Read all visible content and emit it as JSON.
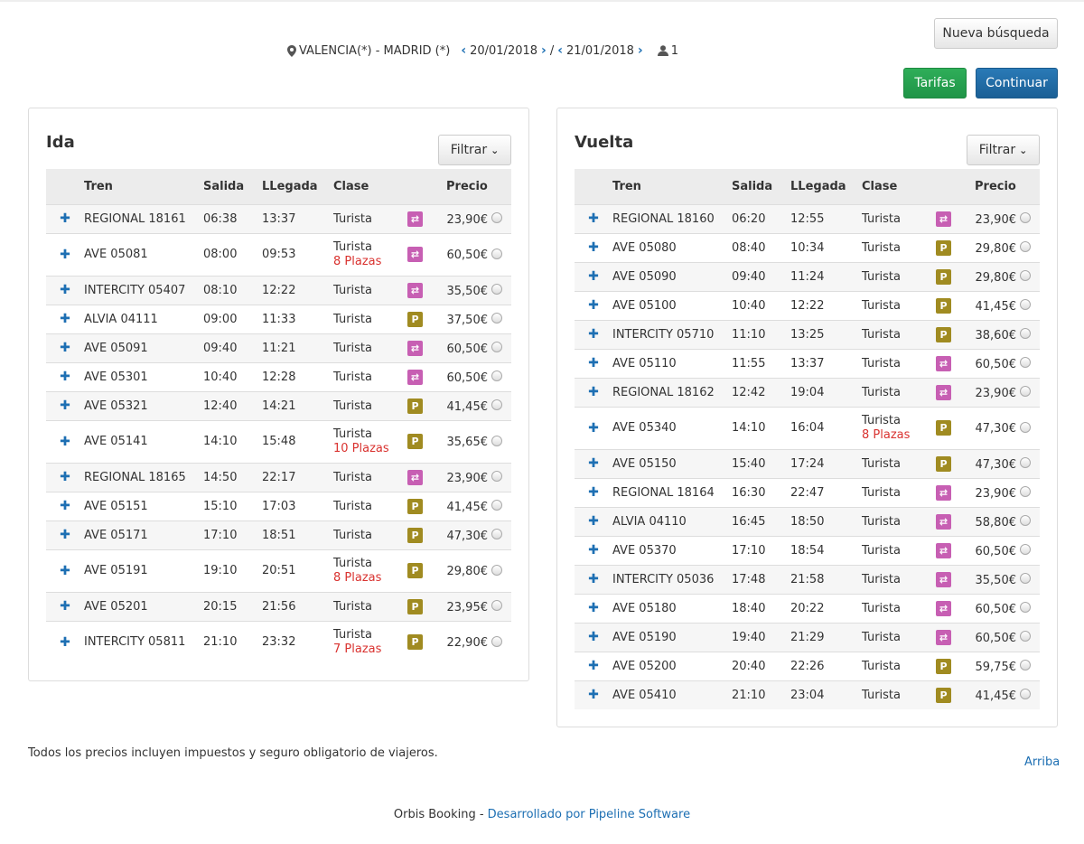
{
  "header": {
    "new_search_label": "Nueva búsqueda",
    "fares_label": "Tarifas",
    "continue_label": "Continuar",
    "route": "VALENCIA(*) - MADRID (*)",
    "date_out": "20/01/2018",
    "separator": "/",
    "date_back": "21/01/2018",
    "passengers": "1"
  },
  "columns": [
    "Tren",
    "Salida",
    "LLegada",
    "Clase",
    "Precio"
  ],
  "ida": {
    "title": "Ida",
    "filter_label": "Filtrar",
    "rows": [
      {
        "train": "REGIONAL 18161",
        "dep": "06:38",
        "arr": "13:37",
        "class": "Turista",
        "plazas": "",
        "icon": "swap",
        "price": "23,90€"
      },
      {
        "train": "AVE 05081",
        "dep": "08:00",
        "arr": "09:53",
        "class": "Turista",
        "plazas": "8 Plazas",
        "icon": "swap",
        "price": "60,50€"
      },
      {
        "train": "INTERCITY 05407",
        "dep": "08:10",
        "arr": "12:22",
        "class": "Turista",
        "plazas": "",
        "icon": "swap",
        "price": "35,50€"
      },
      {
        "train": "ALVIA 04111",
        "dep": "09:00",
        "arr": "11:33",
        "class": "Turista",
        "plazas": "",
        "icon": "park",
        "price": "37,50€"
      },
      {
        "train": "AVE 05091",
        "dep": "09:40",
        "arr": "11:21",
        "class": "Turista",
        "plazas": "",
        "icon": "swap",
        "price": "60,50€"
      },
      {
        "train": "AVE 05301",
        "dep": "10:40",
        "arr": "12:28",
        "class": "Turista",
        "plazas": "",
        "icon": "swap",
        "price": "60,50€"
      },
      {
        "train": "AVE 05321",
        "dep": "12:40",
        "arr": "14:21",
        "class": "Turista",
        "plazas": "",
        "icon": "park",
        "price": "41,45€"
      },
      {
        "train": "AVE 05141",
        "dep": "14:10",
        "arr": "15:48",
        "class": "Turista",
        "plazas": "10 Plazas",
        "icon": "park",
        "price": "35,65€"
      },
      {
        "train": "REGIONAL 18165",
        "dep": "14:50",
        "arr": "22:17",
        "class": "Turista",
        "plazas": "",
        "icon": "swap",
        "price": "23,90€"
      },
      {
        "train": "AVE 05151",
        "dep": "15:10",
        "arr": "17:03",
        "class": "Turista",
        "plazas": "",
        "icon": "park",
        "price": "41,45€"
      },
      {
        "train": "AVE 05171",
        "dep": "17:10",
        "arr": "18:51",
        "class": "Turista",
        "plazas": "",
        "icon": "park",
        "price": "47,30€"
      },
      {
        "train": "AVE 05191",
        "dep": "19:10",
        "arr": "20:51",
        "class": "Turista",
        "plazas": "8 Plazas",
        "icon": "park",
        "price": "29,80€"
      },
      {
        "train": "AVE 05201",
        "dep": "20:15",
        "arr": "21:56",
        "class": "Turista",
        "plazas": "",
        "icon": "park",
        "price": "23,95€"
      },
      {
        "train": "INTERCITY 05811",
        "dep": "21:10",
        "arr": "23:32",
        "class": "Turista",
        "plazas": "7 Plazas",
        "icon": "park",
        "price": "22,90€"
      }
    ]
  },
  "vuelta": {
    "title": "Vuelta",
    "filter_label": "Filtrar",
    "rows": [
      {
        "train": "REGIONAL 18160",
        "dep": "06:20",
        "arr": "12:55",
        "class": "Turista",
        "plazas": "",
        "icon": "swap",
        "price": "23,90€"
      },
      {
        "train": "AVE 05080",
        "dep": "08:40",
        "arr": "10:34",
        "class": "Turista",
        "plazas": "",
        "icon": "park",
        "price": "29,80€"
      },
      {
        "train": "AVE 05090",
        "dep": "09:40",
        "arr": "11:24",
        "class": "Turista",
        "plazas": "",
        "icon": "park",
        "price": "29,80€"
      },
      {
        "train": "AVE 05100",
        "dep": "10:40",
        "arr": "12:22",
        "class": "Turista",
        "plazas": "",
        "icon": "park",
        "price": "41,45€"
      },
      {
        "train": "INTERCITY 05710",
        "dep": "11:10",
        "arr": "13:25",
        "class": "Turista",
        "plazas": "",
        "icon": "park",
        "price": "38,60€"
      },
      {
        "train": "AVE 05110",
        "dep": "11:55",
        "arr": "13:37",
        "class": "Turista",
        "plazas": "",
        "icon": "swap",
        "price": "60,50€"
      },
      {
        "train": "REGIONAL 18162",
        "dep": "12:42",
        "arr": "19:04",
        "class": "Turista",
        "plazas": "",
        "icon": "swap",
        "price": "23,90€"
      },
      {
        "train": "AVE 05340",
        "dep": "14:10",
        "arr": "16:04",
        "class": "Turista",
        "plazas": "8 Plazas",
        "icon": "park",
        "price": "47,30€"
      },
      {
        "train": "AVE 05150",
        "dep": "15:40",
        "arr": "17:24",
        "class": "Turista",
        "plazas": "",
        "icon": "park",
        "price": "47,30€"
      },
      {
        "train": "REGIONAL 18164",
        "dep": "16:30",
        "arr": "22:47",
        "class": "Turista",
        "plazas": "",
        "icon": "swap",
        "price": "23,90€"
      },
      {
        "train": "ALVIA 04110",
        "dep": "16:45",
        "arr": "18:50",
        "class": "Turista",
        "plazas": "",
        "icon": "swap",
        "price": "58,80€"
      },
      {
        "train": "AVE 05370",
        "dep": "17:10",
        "arr": "18:54",
        "class": "Turista",
        "plazas": "",
        "icon": "swap",
        "price": "60,50€"
      },
      {
        "train": "INTERCITY 05036",
        "dep": "17:48",
        "arr": "21:58",
        "class": "Turista",
        "plazas": "",
        "icon": "swap",
        "price": "35,50€"
      },
      {
        "train": "AVE 05180",
        "dep": "18:40",
        "arr": "20:22",
        "class": "Turista",
        "plazas": "",
        "icon": "swap",
        "price": "60,50€"
      },
      {
        "train": "AVE 05190",
        "dep": "19:40",
        "arr": "21:29",
        "class": "Turista",
        "plazas": "",
        "icon": "swap",
        "price": "60,50€"
      },
      {
        "train": "AVE 05200",
        "dep": "20:40",
        "arr": "22:26",
        "class": "Turista",
        "plazas": "",
        "icon": "park",
        "price": "59,75€"
      },
      {
        "train": "AVE 05410",
        "dep": "21:10",
        "arr": "23:04",
        "class": "Turista",
        "plazas": "",
        "icon": "park",
        "price": "41,45€"
      }
    ]
  },
  "footer": {
    "note": "Todos los precios incluyen impuestos y seguro obligatorio de viajeros.",
    "top_link": "Arriba",
    "brand": "Orbis Booking - ",
    "developer_link": "Desarrollado por Pipeline Software"
  },
  "colors": {
    "accent": "#1d6fb3",
    "green": "#1f9447",
    "blue": "#1a5f95",
    "swap_badge": "#c75fb3",
    "park_badge": "#a08b21",
    "plazas": "#d9322f"
  }
}
